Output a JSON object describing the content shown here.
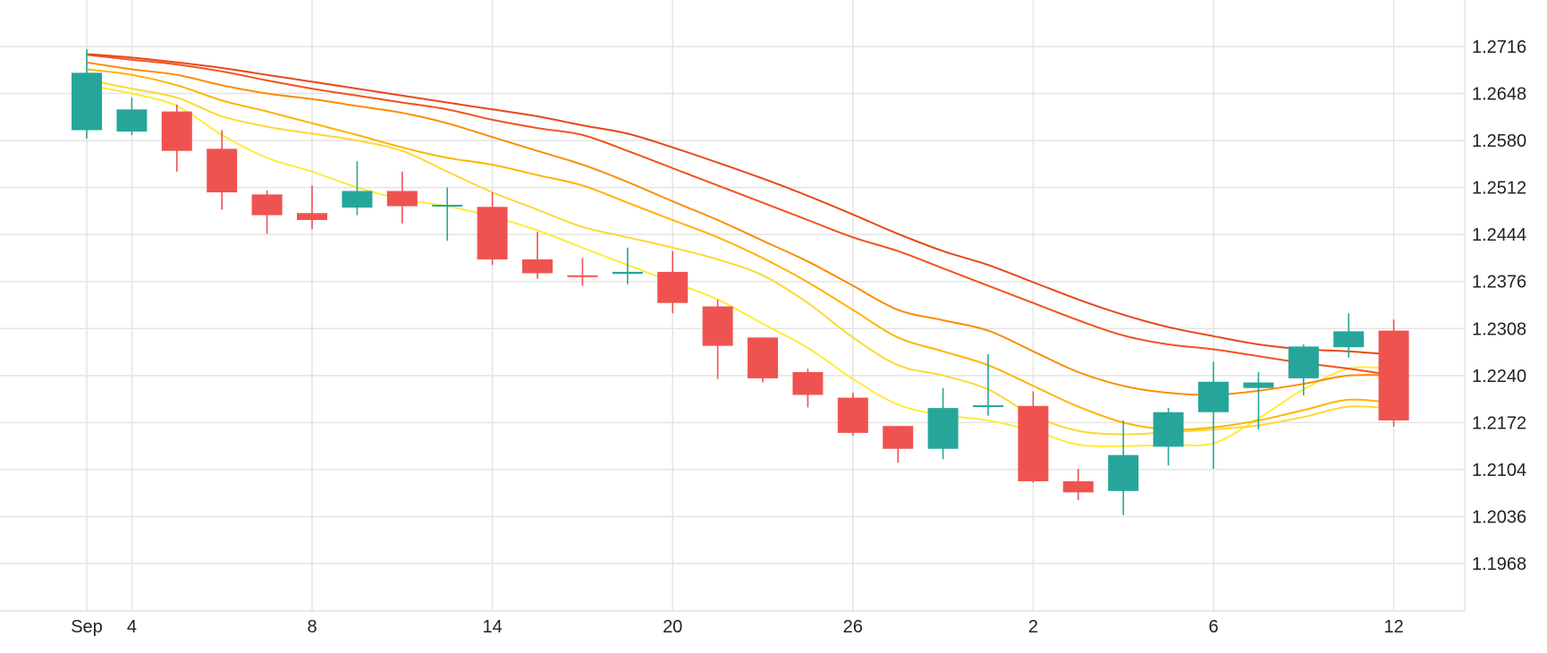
{
  "chart_data": {
    "type": "candlestick",
    "title": "",
    "xlabel": "",
    "ylabel": "",
    "ylim": [
      1.19,
      1.2764
    ],
    "y_ticks": [
      "1.2716",
      "1.2648",
      "1.2580",
      "1.2512",
      "1.2444",
      "1.2376",
      "1.2308",
      "1.2240",
      "1.2172",
      "1.2104",
      "1.2036",
      "1.1968"
    ],
    "x_ticks": [
      {
        "label": "Sep",
        "index": 0
      },
      {
        "label": "4",
        "index": 1
      },
      {
        "label": "8",
        "index": 5
      },
      {
        "label": "14",
        "index": 9
      },
      {
        "label": "20",
        "index": 13
      },
      {
        "label": "26",
        "index": 17
      },
      {
        "label": "2",
        "index": 21
      },
      {
        "label": "6",
        "index": 25
      },
      {
        "label": "12",
        "index": 29
      }
    ],
    "grid": true,
    "candles": [
      {
        "o": 1.2595,
        "h": 1.2712,
        "l": 1.2583,
        "c": 1.2678
      },
      {
        "o": 1.2593,
        "h": 1.2642,
        "l": 1.2588,
        "c": 1.2625
      },
      {
        "o": 1.2622,
        "h": 1.2632,
        "l": 1.2535,
        "c": 1.2565
      },
      {
        "o": 1.2568,
        "h": 1.2595,
        "l": 1.248,
        "c": 1.2505
      },
      {
        "o": 1.2502,
        "h": 1.2508,
        "l": 1.2445,
        "c": 1.2472
      },
      {
        "o": 1.2475,
        "h": 1.2515,
        "l": 1.2452,
        "c": 1.2465
      },
      {
        "o": 1.2483,
        "h": 1.255,
        "l": 1.2472,
        "c": 1.2507
      },
      {
        "o": 1.2507,
        "h": 1.2535,
        "l": 1.246,
        "c": 1.2485
      },
      {
        "o": 1.2485,
        "h": 1.2512,
        "l": 1.2435,
        "c": 1.2487
      },
      {
        "o": 1.2484,
        "h": 1.2505,
        "l": 1.24,
        "c": 1.2408
      },
      {
        "o": 1.2408,
        "h": 1.2448,
        "l": 1.238,
        "c": 1.2388
      },
      {
        "o": 1.2385,
        "h": 1.241,
        "l": 1.237,
        "c": 1.2383
      },
      {
        "o": 1.2387,
        "h": 1.2425,
        "l": 1.2372,
        "c": 1.239
      },
      {
        "o": 1.239,
        "h": 1.242,
        "l": 1.233,
        "c": 1.2345
      },
      {
        "o": 1.234,
        "h": 1.235,
        "l": 1.2235,
        "c": 1.2283
      },
      {
        "o": 1.2295,
        "h": 1.2295,
        "l": 1.223,
        "c": 1.2236
      },
      {
        "o": 1.2245,
        "h": 1.225,
        "l": 1.2194,
        "c": 1.2212
      },
      {
        "o": 1.2208,
        "h": 1.2215,
        "l": 1.2153,
        "c": 1.2157
      },
      {
        "o": 1.2167,
        "h": 1.2167,
        "l": 1.2114,
        "c": 1.2134
      },
      {
        "o": 1.2134,
        "h": 1.2222,
        "l": 1.2119,
        "c": 1.2193
      },
      {
        "o": 1.2196,
        "h": 1.2271,
        "l": 1.2182,
        "c": 1.2197
      },
      {
        "o": 1.2196,
        "h": 1.2217,
        "l": 1.2085,
        "c": 1.2087
      },
      {
        "o": 1.2087,
        "h": 1.2105,
        "l": 1.206,
        "c": 1.2071
      },
      {
        "o": 1.2073,
        "h": 1.2175,
        "l": 1.2038,
        "c": 1.2125
      },
      {
        "o": 1.2137,
        "h": 1.2193,
        "l": 1.211,
        "c": 1.2187
      },
      {
        "o": 1.2187,
        "h": 1.226,
        "l": 1.2105,
        "c": 1.2231
      },
      {
        "o": 1.2222,
        "h": 1.2245,
        "l": 1.2162,
        "c": 1.223
      },
      {
        "o": 1.2236,
        "h": 1.2285,
        "l": 1.2211,
        "c": 1.2282
      },
      {
        "o": 1.2281,
        "h": 1.233,
        "l": 1.2266,
        "c": 1.2304
      },
      {
        "o": 1.2305,
        "h": 1.2321,
        "l": 1.2166,
        "c": 1.2175
      }
    ],
    "candle_colors": {
      "up": "#26a69a",
      "down": "#ef5350"
    },
    "series": [
      {
        "color": "#ffeb3b",
        "values": [
          1.266,
          1.2648,
          1.263,
          1.2588,
          1.2555,
          1.2535,
          1.2512,
          1.2495,
          1.2485,
          1.247,
          1.245,
          1.2425,
          1.24,
          1.2375,
          1.235,
          1.2315,
          1.228,
          1.2235,
          1.2198,
          1.2183,
          1.2175,
          1.216,
          1.214,
          1.2138,
          1.214,
          1.2142,
          1.2178,
          1.222,
          1.225,
          1.225
        ]
      },
      {
        "color": "#fdd835",
        "values": [
          1.2668,
          1.2655,
          1.2642,
          1.2615,
          1.26,
          1.259,
          1.258,
          1.2565,
          1.2535,
          1.2505,
          1.248,
          1.2455,
          1.244,
          1.2425,
          1.2408,
          1.2385,
          1.2345,
          1.2295,
          1.2255,
          1.224,
          1.222,
          1.2182,
          1.216,
          1.2155,
          1.2158,
          1.2162,
          1.2168,
          1.218,
          1.2195,
          1.2192
        ]
      },
      {
        "color": "#ffb300",
        "values": [
          1.2683,
          1.2675,
          1.266,
          1.2638,
          1.2622,
          1.2605,
          1.2588,
          1.257,
          1.2555,
          1.2545,
          1.253,
          1.2515,
          1.249,
          1.2465,
          1.244,
          1.241,
          1.2375,
          1.2335,
          1.2295,
          1.2275,
          1.2255,
          1.2225,
          1.2195,
          1.2172,
          1.2162,
          1.2165,
          1.2175,
          1.219,
          1.2205,
          1.22
        ]
      },
      {
        "color": "#fb8c00",
        "values": [
          1.2693,
          1.2683,
          1.2675,
          1.266,
          1.2648,
          1.264,
          1.263,
          1.262,
          1.2605,
          1.2585,
          1.2565,
          1.2545,
          1.252,
          1.2492,
          1.2465,
          1.2435,
          1.2405,
          1.237,
          1.2335,
          1.232,
          1.2305,
          1.2275,
          1.2245,
          1.2225,
          1.2215,
          1.2212,
          1.2218,
          1.2228,
          1.224,
          1.224
        ]
      },
      {
        "color": "#f4511e",
        "values": [
          1.2704,
          1.2697,
          1.269,
          1.268,
          1.2667,
          1.2655,
          1.2645,
          1.2635,
          1.2625,
          1.261,
          1.2598,
          1.2588,
          1.2565,
          1.254,
          1.2515,
          1.249,
          1.2465,
          1.244,
          1.242,
          1.2395,
          1.237,
          1.2345,
          1.232,
          1.2298,
          1.2285,
          1.2278,
          1.2268,
          1.2258,
          1.225,
          1.224
        ]
      },
      {
        "color": "#e64a19",
        "values": [
          1.2705,
          1.27,
          1.2693,
          1.2685,
          1.2675,
          1.2665,
          1.2655,
          1.2645,
          1.2635,
          1.2625,
          1.2615,
          1.2602,
          1.259,
          1.257,
          1.2548,
          1.2525,
          1.25,
          1.2473,
          1.2445,
          1.242,
          1.24,
          1.2375,
          1.235,
          1.2328,
          1.231,
          1.2297,
          1.2285,
          1.2278,
          1.2275,
          1.227
        ]
      }
    ]
  }
}
